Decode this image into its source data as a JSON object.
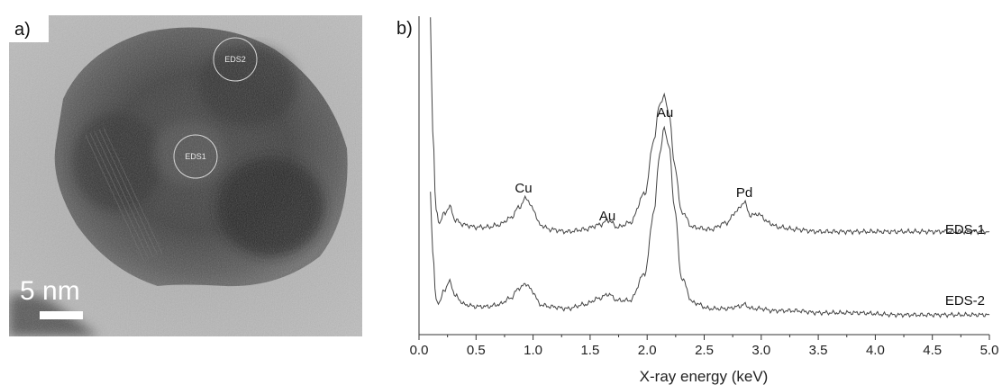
{
  "panel_a": {
    "label": "a)",
    "scale_bar_text": "5 nm",
    "regions": [
      {
        "label": "EDS2"
      },
      {
        "label": "EDS1"
      }
    ]
  },
  "panel_b": {
    "label": "b)"
  },
  "chart_data": {
    "type": "line",
    "xlabel": "X-ray energy (keV)",
    "ylabel": "",
    "xlim": [
      0.0,
      5.0
    ],
    "x_ticks": [
      "0.0",
      "0.5",
      "1.0",
      "1.5",
      "2.0",
      "2.5",
      "3.0",
      "3.5",
      "4.0",
      "4.5",
      "5.0"
    ],
    "y_ticks_shown": false,
    "grid": false,
    "series": [
      {
        "name": "EDS-1",
        "x": [
          0.1,
          0.12,
          0.15,
          0.18,
          0.22,
          0.27,
          0.32,
          0.4,
          0.5,
          0.6,
          0.7,
          0.8,
          0.88,
          0.94,
          1.0,
          1.06,
          1.15,
          1.3,
          1.45,
          1.58,
          1.66,
          1.74,
          1.85,
          1.98,
          2.06,
          2.11,
          2.15,
          2.19,
          2.24,
          2.3,
          2.4,
          2.55,
          2.7,
          2.78,
          2.85,
          2.91,
          2.96,
          3.0,
          3.06,
          3.15,
          3.3,
          3.5,
          3.8,
          4.2,
          4.6,
          5.0
        ],
        "y": [
          100,
          50,
          14,
          9,
          13,
          16,
          10,
          8,
          7,
          7,
          8,
          11,
          16,
          20,
          15,
          8,
          6,
          5,
          6,
          8,
          10,
          7,
          9,
          22,
          46,
          62,
          65,
          58,
          35,
          14,
          7,
          6,
          9,
          14,
          18,
          12,
          13,
          12,
          9,
          7,
          6,
          5,
          5,
          5,
          5,
          5
        ]
      },
      {
        "name": "EDS-2",
        "x": [
          0.1,
          0.12,
          0.15,
          0.18,
          0.22,
          0.27,
          0.32,
          0.4,
          0.5,
          0.6,
          0.7,
          0.8,
          0.88,
          0.94,
          1.0,
          1.06,
          1.15,
          1.3,
          1.45,
          1.58,
          1.66,
          1.74,
          1.85,
          1.98,
          2.06,
          2.11,
          2.15,
          2.19,
          2.24,
          2.3,
          2.4,
          2.55,
          2.7,
          2.8,
          2.85,
          2.92,
          3.0,
          3.1,
          3.3,
          3.5,
          3.8,
          4.2,
          4.6,
          5.0
        ],
        "y": [
          60,
          30,
          7,
          6,
          12,
          16,
          9,
          5,
          4,
          4,
          5,
          8,
          13,
          15,
          11,
          5,
          4,
          3,
          5,
          8,
          10,
          7,
          7,
          20,
          50,
          78,
          90,
          82,
          52,
          18,
          6,
          3,
          3,
          4,
          5,
          3,
          3,
          2,
          2,
          1,
          1,
          0,
          0,
          0
        ]
      }
    ],
    "annotations": [
      "Cu",
      "Au",
      "Au",
      "Pd"
    ]
  }
}
